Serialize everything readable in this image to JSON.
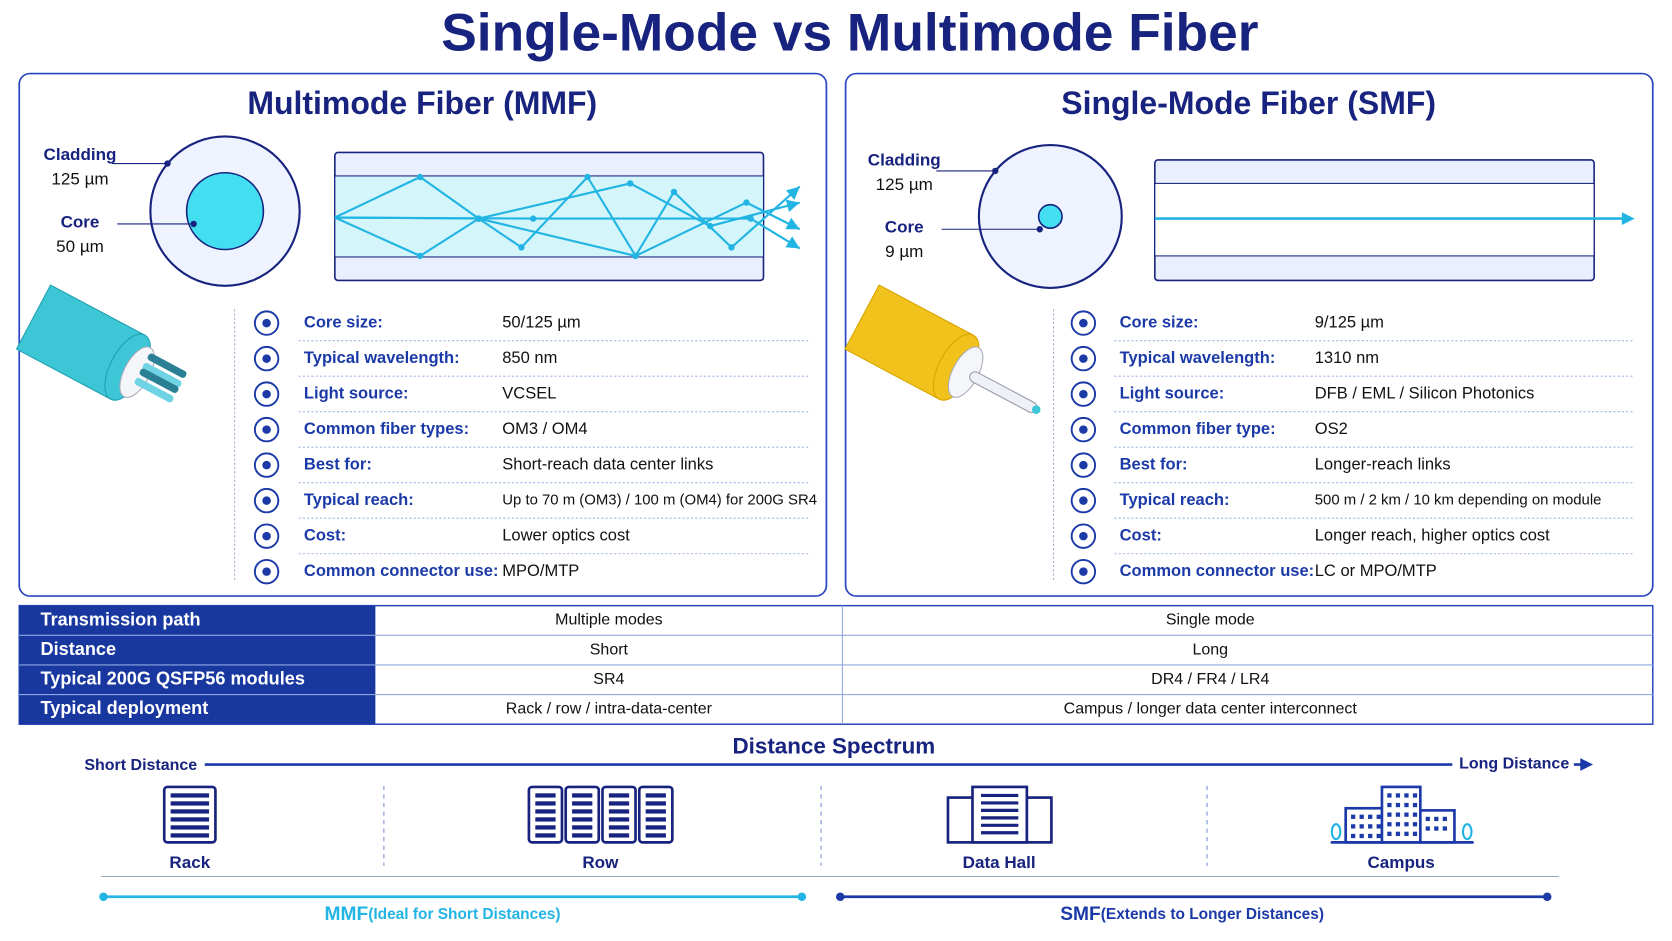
{
  "title": "Single-Mode vs Multimode Fiber",
  "panels": [
    {
      "title": "Multimode Fiber (MMF)",
      "cladding_label": "Cladding",
      "cladding_size": "125 µm",
      "core_label": "Core",
      "core_size": "50 µm",
      "specs": [
        {
          "label": "Core size:",
          "value": "50/125 µm"
        },
        {
          "label": "Typical wavelength:",
          "value": "850 nm"
        },
        {
          "label": "Light source:",
          "value": "VCSEL"
        },
        {
          "label": "Common fiber types:",
          "value": "OM3 / OM4"
        },
        {
          "label": "Best for:",
          "value": "Short-reach data center links"
        },
        {
          "label": "Typical reach:",
          "value": "Up to 70 m (OM3) / 100 m (OM4) for 200G SR4"
        },
        {
          "label": "Cost:",
          "value": "Lower optics cost"
        },
        {
          "label": "Common connector use:",
          "value": "MPO/MTP"
        }
      ]
    },
    {
      "title": "Single-Mode Fiber (SMF)",
      "cladding_label": "Cladding",
      "cladding_size": "125 µm",
      "core_label": "Core",
      "core_size": "9 µm",
      "specs": [
        {
          "label": "Core size:",
          "value": "9/125 µm"
        },
        {
          "label": "Typical wavelength:",
          "value": "1310 nm"
        },
        {
          "label": "Light source:",
          "value": "DFB / EML / Silicon Photonics"
        },
        {
          "label": "Common fiber type:",
          "value": "OS2"
        },
        {
          "label": "Best for:",
          "value": "Longer-reach links"
        },
        {
          "label": "Typical reach:",
          "value": "500 m / 2 km / 10 km depending on module"
        },
        {
          "label": "Cost:",
          "value": "Longer reach, higher optics cost"
        },
        {
          "label": "Common connector use:",
          "value": "LC or MPO/MTP"
        }
      ]
    }
  ],
  "table": {
    "rows": [
      [
        "Transmission path",
        "Multiple modes",
        "Single mode"
      ],
      [
        "Distance",
        "Short",
        "Long"
      ],
      [
        "Typical 200G QSFP56 modules",
        "SR4",
        "DR4 / FR4 / LR4"
      ],
      [
        "Typical deployment",
        "Rack / row / intra-data-center",
        "Campus / longer data center interconnect"
      ]
    ]
  },
  "spectrum": {
    "title": "Distance Spectrum",
    "short": "Short Distance",
    "long": "Long Distance",
    "stages": [
      "Rack",
      "Row",
      "Data Hall",
      "Campus"
    ],
    "mmf": {
      "name": "MMF",
      "note": "(Ideal for Short Distances)"
    },
    "smf": {
      "name": "SMF",
      "note": "(Extends to Longer Distances)"
    }
  }
}
